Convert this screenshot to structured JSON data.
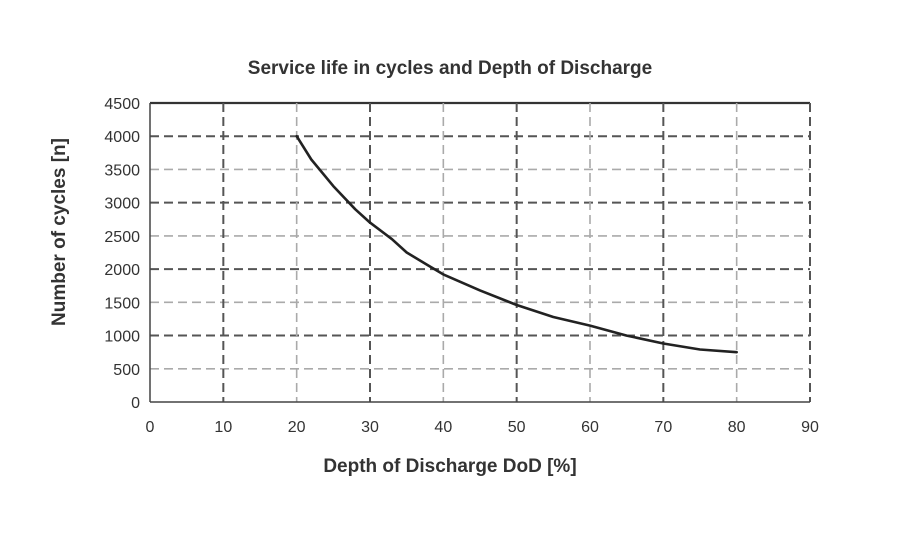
{
  "chart_data": {
    "type": "line",
    "title": "Service life in cycles and Depth of Discharge",
    "xlabel": "Depth of Discharge DoD [%]",
    "ylabel": "Number of cycles [n]",
    "xlim": [
      0,
      90
    ],
    "ylim": [
      0,
      4500
    ],
    "xticks": [
      0,
      10,
      20,
      30,
      40,
      50,
      60,
      70,
      80,
      90
    ],
    "yticks": [
      0,
      500,
      1000,
      1500,
      2000,
      2500,
      3000,
      3500,
      4000,
      4500
    ],
    "grid": true,
    "series": [
      {
        "x": [
          20,
          22,
          25,
          28,
          30,
          33,
          35,
          38,
          40,
          45,
          50,
          55,
          60,
          65,
          70,
          75,
          80
        ],
        "y": [
          4000,
          3650,
          3250,
          2900,
          2700,
          2450,
          2250,
          2050,
          1920,
          1680,
          1460,
          1280,
          1150,
          1000,
          880,
          790,
          750
        ]
      }
    ],
    "colors": {
      "line": "#222222",
      "grid_major": "#555555",
      "grid_minor": "#aaaaaa",
      "axis": "#444444"
    }
  }
}
